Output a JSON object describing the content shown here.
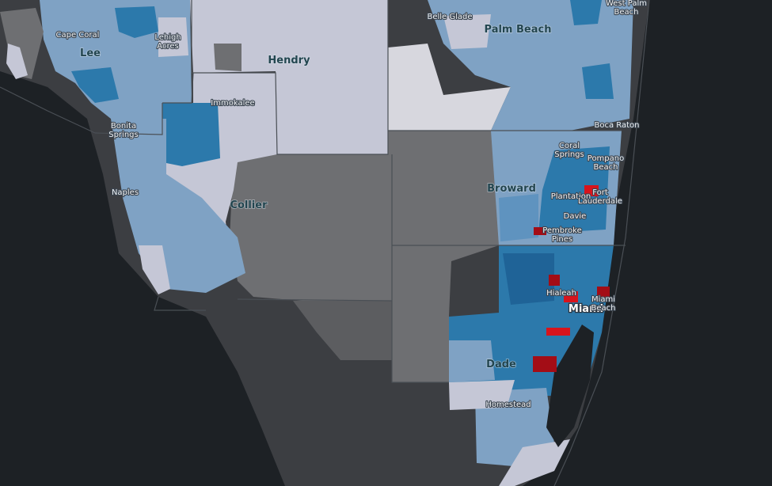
{
  "map": {
    "colors": {
      "ocean": "#1d2125",
      "land_dark": "#3c3e42",
      "no_data": "#6e6f72",
      "light": "#c5c7d6",
      "pale": "#d7d7de",
      "mid_blue": "#7fa2c4",
      "blue": "#5f93bf",
      "deep_blue": "#2c79ab",
      "darkest_blue": "#1f6397",
      "red": "#d8141c",
      "dark_red": "#a30d16"
    },
    "labels": {
      "cape_coral": "Cape Coral",
      "lee": "Lee",
      "lehigh_acres": "Lehigh\nAcres",
      "hendry": "Hendry",
      "belle_glade": "Belle Glade",
      "palm_beach": "Palm Beach",
      "west_palm_beach": "West Palm\nBeach",
      "immokalee": "Immokalee",
      "bonita_springs": "Bonita\nSprings",
      "naples": "Naples",
      "collier": "Collier",
      "boca_raton": "Boca Raton",
      "coral_springs": "Coral\nSprings",
      "pompano_beach": "Pompano\nBeach",
      "broward": "Broward",
      "plantation": "Plantation",
      "fort_lauderdale": "Fort\nLauderdale",
      "davie": "Davie",
      "pembroke_pines": "Pembroke\nPines",
      "hialeah": "Hialeah",
      "miami": "Miami",
      "miami_beach": "Miami\nBeach",
      "dade": "Dade",
      "homestead": "Homestead"
    }
  }
}
